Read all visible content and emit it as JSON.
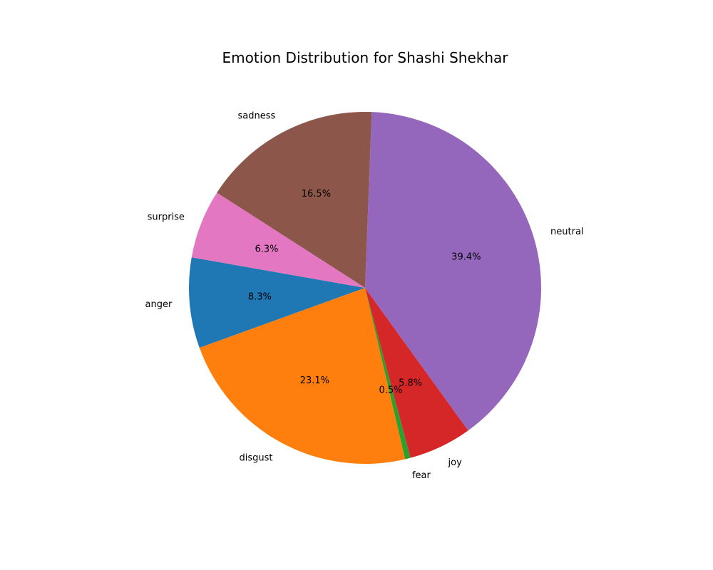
{
  "chart_data": {
    "type": "pie",
    "title": "Emotion Distribution for Shashi Shekhar",
    "start_angle_deg": 170,
    "direction": "counterclockwise",
    "slices": [
      {
        "label": "anger",
        "value": 8.3,
        "pct_label": "8.3%",
        "color": "#1f77b4"
      },
      {
        "label": "disgust",
        "value": 23.1,
        "pct_label": "23.1%",
        "color": "#ff7f0e"
      },
      {
        "label": "fear",
        "value": 0.5,
        "pct_label": "0.5%",
        "color": "#2ca02c"
      },
      {
        "label": "joy",
        "value": 5.8,
        "pct_label": "5.8%",
        "color": "#d62728"
      },
      {
        "label": "neutral",
        "value": 39.4,
        "pct_label": "39.4%",
        "color": "#9467bd"
      },
      {
        "label": "sadness",
        "value": 16.5,
        "pct_label": "16.5%",
        "color": "#8c564b"
      },
      {
        "label": "surprise",
        "value": 6.3,
        "pct_label": "6.3%",
        "color": "#e377c2"
      }
    ]
  }
}
